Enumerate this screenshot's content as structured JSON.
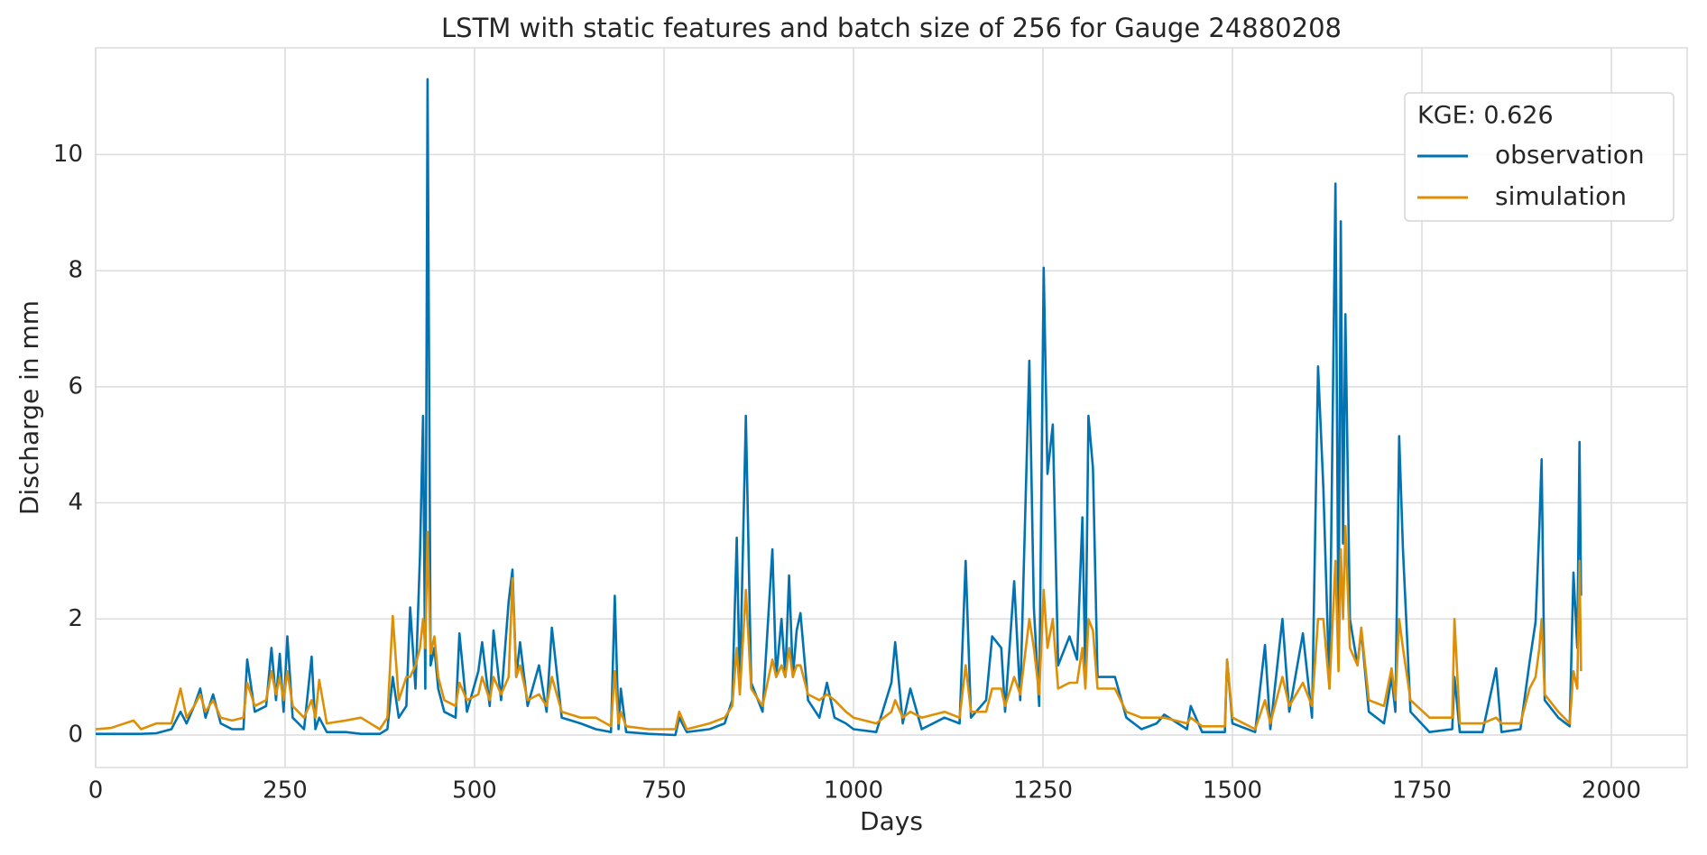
{
  "chart_data": {
    "type": "line",
    "title": "LSTM with static features and batch size of 256 for Gauge 24880208",
    "x_label": "Days",
    "y_label": "Discharge in mm",
    "legend_title": "KGE: 0.626",
    "legend_position": "upper right",
    "grid": true,
    "xlim": [
      0,
      2100
    ],
    "ylim": [
      -0.56,
      11.84
    ],
    "xticks": [
      0,
      250,
      500,
      750,
      1000,
      1250,
      1500,
      1750,
      2000
    ],
    "yticks": [
      0,
      2,
      4,
      6,
      8,
      10
    ],
    "x": [
      0,
      20,
      50,
      60,
      80,
      100,
      112,
      120,
      130,
      138,
      145,
      155,
      165,
      180,
      195,
      200,
      210,
      225,
      232,
      238,
      243,
      248,
      253,
      260,
      275,
      285,
      290,
      295,
      305,
      330,
      350,
      375,
      385,
      392,
      400,
      410,
      415,
      422,
      428,
      432,
      435,
      438,
      442,
      447,
      452,
      460,
      475,
      480,
      490,
      505,
      510,
      520,
      525,
      535,
      545,
      550,
      555,
      560,
      570,
      585,
      595,
      602,
      615,
      640,
      660,
      680,
      685,
      690,
      693,
      700,
      730,
      765,
      770,
      780,
      810,
      830,
      840,
      846,
      850,
      858,
      865,
      880,
      893,
      898,
      905,
      910,
      915,
      920,
      925,
      930,
      940,
      955,
      965,
      975,
      990,
      1000,
      1030,
      1050,
      1055,
      1065,
      1075,
      1090,
      1120,
      1140,
      1148,
      1155,
      1175,
      1183,
      1195,
      1200,
      1212,
      1220,
      1232,
      1238,
      1245,
      1251,
      1256,
      1263,
      1270,
      1285,
      1295,
      1302,
      1306,
      1310,
      1316,
      1322,
      1345,
      1360,
      1380,
      1400,
      1410,
      1440,
      1445,
      1460,
      1490,
      1493,
      1500,
      1530,
      1543,
      1550,
      1566,
      1575,
      1593,
      1605,
      1613,
      1620,
      1628,
      1636,
      1640,
      1643,
      1646,
      1649,
      1655,
      1665,
      1670,
      1680,
      1700,
      1710,
      1715,
      1720,
      1725,
      1735,
      1760,
      1790,
      1793,
      1800,
      1830,
      1848,
      1855,
      1880,
      1892,
      1900,
      1905,
      1908,
      1912,
      1930,
      1945,
      1950,
      1955,
      1958,
      1960
    ],
    "series": [
      {
        "name": "observation",
        "color": "#0173b2",
        "values": [
          0.02,
          0.02,
          0.02,
          0.02,
          0.03,
          0.1,
          0.4,
          0.2,
          0.5,
          0.8,
          0.3,
          0.7,
          0.2,
          0.1,
          0.1,
          1.3,
          0.4,
          0.5,
          1.5,
          0.6,
          1.4,
          0.4,
          1.7,
          0.3,
          0.1,
          1.35,
          0.1,
          0.3,
          0.05,
          0.05,
          0.02,
          0.02,
          0.1,
          1.0,
          0.3,
          0.5,
          2.2,
          0.8,
          3.1,
          5.5,
          0.8,
          11.3,
          1.2,
          1.5,
          0.8,
          0.4,
          0.3,
          1.75,
          0.4,
          1.1,
          1.6,
          0.5,
          1.8,
          0.6,
          2.3,
          2.85,
          1.0,
          1.6,
          0.5,
          1.2,
          0.4,
          1.85,
          0.3,
          0.2,
          0.1,
          0.05,
          2.4,
          0.1,
          0.8,
          0.05,
          0.02,
          0.0,
          0.3,
          0.05,
          0.1,
          0.2,
          0.6,
          3.4,
          0.8,
          5.5,
          0.9,
          0.4,
          3.2,
          1.0,
          2.0,
          1.0,
          2.75,
          1.0,
          1.8,
          2.1,
          0.6,
          0.3,
          0.9,
          0.3,
          0.2,
          0.1,
          0.05,
          0.9,
          1.6,
          0.2,
          0.8,
          0.1,
          0.3,
          0.2,
          3.0,
          0.3,
          0.6,
          1.7,
          1.5,
          0.4,
          2.65,
          0.6,
          6.45,
          2.2,
          0.5,
          8.05,
          4.5,
          5.35,
          1.2,
          1.7,
          1.3,
          3.75,
          1.0,
          5.5,
          4.6,
          1.0,
          1.0,
          0.3,
          0.1,
          0.2,
          0.35,
          0.1,
          0.5,
          0.05,
          0.05,
          1.3,
          0.2,
          0.05,
          1.55,
          0.1,
          2.0,
          0.4,
          1.75,
          0.3,
          6.35,
          4.25,
          0.8,
          9.5,
          1.5,
          8.85,
          3.3,
          7.25,
          2.0,
          1.2,
          1.8,
          0.4,
          0.2,
          1.0,
          0.4,
          5.15,
          3.2,
          0.4,
          0.05,
          0.1,
          1.0,
          0.05,
          0.05,
          1.15,
          0.05,
          0.1,
          1.25,
          1.95,
          3.6,
          4.75,
          0.6,
          0.3,
          0.15,
          2.8,
          1.5,
          5.05,
          2.4
        ]
      },
      {
        "name": "simulation",
        "color": "#de8f05",
        "values": [
          0.1,
          0.12,
          0.25,
          0.1,
          0.2,
          0.2,
          0.8,
          0.3,
          0.5,
          0.7,
          0.4,
          0.6,
          0.3,
          0.25,
          0.3,
          0.9,
          0.5,
          0.6,
          1.1,
          0.7,
          1.0,
          0.6,
          1.1,
          0.5,
          0.3,
          0.6,
          0.3,
          0.95,
          0.2,
          0.25,
          0.3,
          0.1,
          0.3,
          2.05,
          0.6,
          1.0,
          1.0,
          1.2,
          1.5,
          2.0,
          1.5,
          3.5,
          1.4,
          1.7,
          1.0,
          0.6,
          0.5,
          0.9,
          0.6,
          0.7,
          1.0,
          0.6,
          1.0,
          0.7,
          1.0,
          2.7,
          1.0,
          1.2,
          0.6,
          0.7,
          0.5,
          1.0,
          0.4,
          0.3,
          0.3,
          0.15,
          1.1,
          0.2,
          0.4,
          0.15,
          0.1,
          0.1,
          0.4,
          0.1,
          0.2,
          0.3,
          0.5,
          1.5,
          0.7,
          2.5,
          0.8,
          0.5,
          1.3,
          1.0,
          1.2,
          1.0,
          1.5,
          1.0,
          1.2,
          1.2,
          0.7,
          0.6,
          0.7,
          0.6,
          0.4,
          0.3,
          0.2,
          0.4,
          0.6,
          0.3,
          0.4,
          0.3,
          0.4,
          0.3,
          1.2,
          0.4,
          0.4,
          0.8,
          0.8,
          0.5,
          1.0,
          0.7,
          2.0,
          1.5,
          0.7,
          2.5,
          1.5,
          2.0,
          0.8,
          0.9,
          0.9,
          1.5,
          0.8,
          2.0,
          1.8,
          0.8,
          0.8,
          0.4,
          0.3,
          0.3,
          0.3,
          0.2,
          0.3,
          0.15,
          0.15,
          1.3,
          0.3,
          0.1,
          0.6,
          0.2,
          1.0,
          0.5,
          0.9,
          0.5,
          2.0,
          2.0,
          0.8,
          3.0,
          1.1,
          3.2,
          2.0,
          3.6,
          1.5,
          1.2,
          1.85,
          0.6,
          0.5,
          1.15,
          0.6,
          2.0,
          1.5,
          0.6,
          0.3,
          0.3,
          2.0,
          0.2,
          0.2,
          0.3,
          0.2,
          0.2,
          0.8,
          1.0,
          1.5,
          2.0,
          0.7,
          0.4,
          0.2,
          1.1,
          0.8,
          3.0,
          1.1
        ]
      }
    ]
  }
}
